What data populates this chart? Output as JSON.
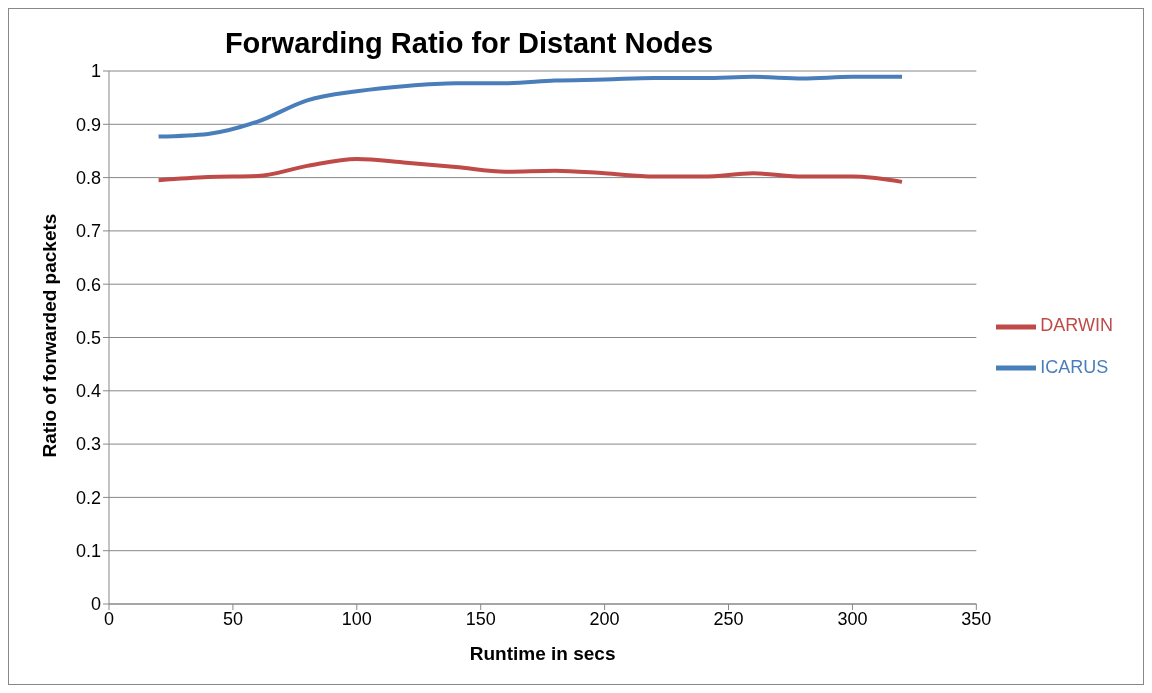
{
  "chart_data": {
    "type": "line",
    "title": "Forwarding Ratio for Distant Nodes",
    "xlabel": "Runtime in secs",
    "ylabel": "Ratio of forwarded packets",
    "x": [
      20,
      40,
      60,
      80,
      100,
      120,
      140,
      160,
      180,
      200,
      220,
      240,
      260,
      280,
      300,
      320
    ],
    "series": [
      {
        "name": "ICARUS",
        "color": "#4a7ebb",
        "values": [
          0.877,
          0.882,
          0.905,
          0.945,
          0.962,
          0.972,
          0.977,
          0.977,
          0.982,
          0.984,
          0.987,
          0.987,
          0.989,
          0.986,
          0.989,
          0.989
        ]
      },
      {
        "name": "DARWIN",
        "color": "#be4b48",
        "values": [
          0.795,
          0.801,
          0.803,
          0.822,
          0.835,
          0.828,
          0.82,
          0.811,
          0.813,
          0.808,
          0.802,
          0.802,
          0.808,
          0.802,
          0.802,
          0.792
        ]
      }
    ],
    "xlim": [
      0,
      350
    ],
    "xticks": [
      0,
      50,
      100,
      150,
      200,
      250,
      300,
      350
    ],
    "ylim": [
      0,
      1
    ],
    "yticks": [
      0,
      0.1,
      0.2,
      0.3,
      0.4,
      0.5,
      0.6,
      0.7,
      0.8,
      0.9,
      1
    ],
    "grid": "y",
    "legend": "right",
    "marker": "none",
    "line_style": "solid"
  }
}
